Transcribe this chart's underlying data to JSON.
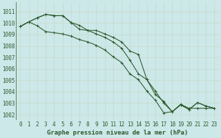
{
  "background_color": "#cce8e8",
  "grid_color": "#b8d8d8",
  "line_color": "#2d5a2d",
  "xlabel": "Graphe pression niveau de la mer (hPa)",
  "ylim": [
    1001.5,
    1011.8
  ],
  "xlim": [
    -0.5,
    23.5
  ],
  "yticks": [
    1002,
    1003,
    1004,
    1005,
    1006,
    1007,
    1008,
    1009,
    1010,
    1011
  ],
  "xticks": [
    0,
    1,
    2,
    3,
    4,
    5,
    6,
    7,
    8,
    9,
    10,
    11,
    12,
    13,
    14,
    15,
    16,
    17,
    18,
    19,
    20,
    21,
    22,
    23
  ],
  "series1_x": [
    0,
    1,
    2,
    3,
    4,
    5,
    6,
    7,
    8,
    9,
    10,
    11,
    12,
    13,
    14,
    15,
    16,
    17,
    18,
    19,
    20,
    21,
    22,
    23
  ],
  "series1_y": [
    1009.7,
    1010.1,
    1010.45,
    1010.75,
    1010.65,
    1010.65,
    1010.05,
    1009.8,
    1009.35,
    1009.05,
    1008.75,
    1008.35,
    1007.8,
    1006.75,
    1005.55,
    1005.05,
    1004.05,
    1003.0,
    1002.25,
    1002.9,
    1002.55,
    1002.55,
    1002.55,
    1002.55
  ],
  "series2_x": [
    0,
    1,
    2,
    3,
    4,
    5,
    6,
    7,
    8,
    9,
    10,
    11,
    12,
    13,
    14,
    15,
    16,
    17,
    18,
    19,
    20,
    21,
    22,
    23
  ],
  "series2_y": [
    1009.7,
    1010.1,
    1010.45,
    1010.75,
    1010.65,
    1010.65,
    1010.05,
    1009.45,
    1009.35,
    1009.35,
    1009.05,
    1008.75,
    1008.35,
    1007.55,
    1007.25,
    1005.05,
    1003.75,
    1003.15,
    1002.25,
    1002.85,
    1002.45,
    1003.05,
    1002.75,
    1002.55
  ],
  "series3_x": [
    0,
    1,
    2,
    3,
    4,
    5,
    6,
    7,
    8,
    9,
    10,
    11,
    12,
    13,
    14,
    15,
    16,
    17,
    18,
    19,
    20,
    21,
    22,
    23
  ],
  "series3_y": [
    1009.7,
    1010.1,
    1009.75,
    1009.25,
    1009.15,
    1009.05,
    1008.85,
    1008.55,
    1008.35,
    1008.05,
    1007.65,
    1007.05,
    1006.55,
    1005.55,
    1005.05,
    1004.05,
    1003.25,
    1002.15,
    1002.25,
    1002.85,
    1002.45,
    1003.05,
    1002.75,
    1002.55
  ],
  "tick_fontsize": 5.5,
  "xlabel_fontsize": 6.5,
  "linewidth": 0.8,
  "markersize": 2.5
}
